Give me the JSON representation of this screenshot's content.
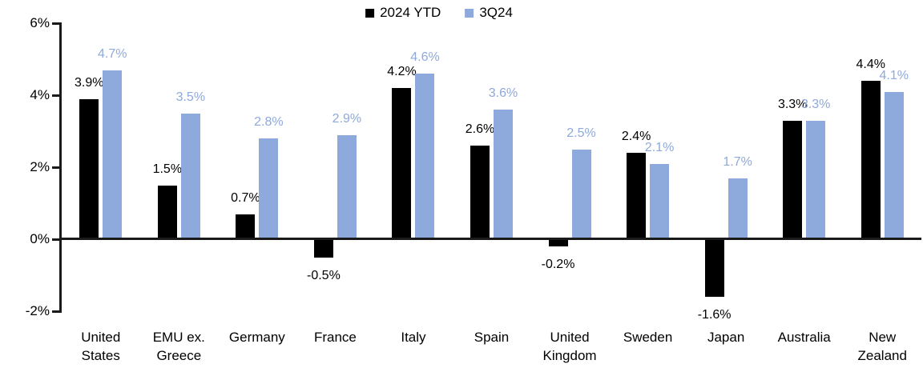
{
  "chart_data": {
    "type": "bar",
    "title": "",
    "categories": [
      "United States",
      "EMU ex. Greece",
      "Germany",
      "France",
      "Italy",
      "Spain",
      "United Kingdom",
      "Sweden",
      "Japan",
      "Australia",
      "New Zealand"
    ],
    "category_labels": [
      "United\nStates",
      "EMU ex.\nGreece",
      "Germany",
      "France",
      "Italy",
      "Spain",
      "United\nKingdom",
      "Sweden",
      "Japan",
      "Australia",
      "New\nZealand"
    ],
    "series": [
      {
        "name": "2024 YTD",
        "color": "#000000",
        "values": [
          3.9,
          1.5,
          0.7,
          -0.5,
          4.2,
          2.6,
          -0.2,
          2.4,
          -1.6,
          3.3,
          4.4
        ]
      },
      {
        "name": "3Q24",
        "color": "#8EA9DB",
        "values": [
          4.7,
          3.5,
          2.8,
          2.9,
          4.6,
          3.6,
          2.5,
          2.1,
          1.7,
          3.3,
          4.1
        ]
      }
    ],
    "value_label_suffix": "%",
    "xlabel": "",
    "ylabel": "",
    "ylim": [
      -2,
      6
    ],
    "yticks": [
      {
        "value": 6,
        "label": "6%"
      },
      {
        "value": 4,
        "label": "4%"
      },
      {
        "value": 2,
        "label": "2%"
      },
      {
        "value": 0,
        "label": "0%"
      },
      {
        "value": -2,
        "label": "-2%"
      }
    ],
    "grid": false,
    "legend_position": "top-center",
    "axis_color": "#1a1a1a",
    "background_color": "#ffffff"
  }
}
